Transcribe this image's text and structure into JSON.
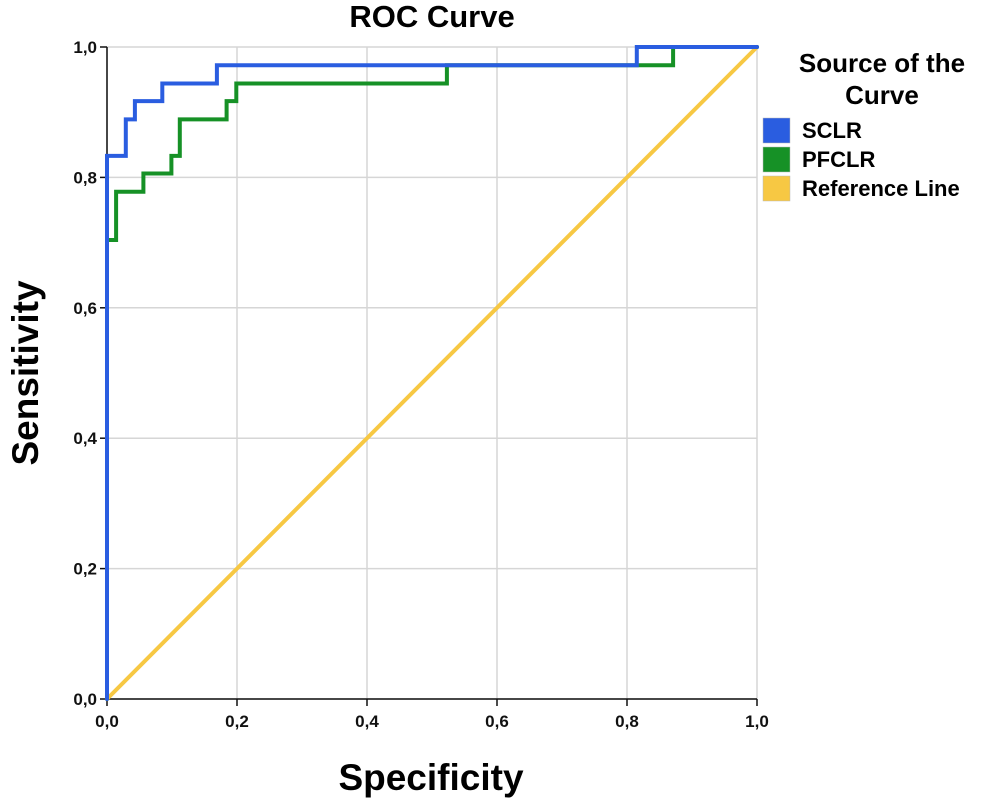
{
  "chart_data": {
    "type": "line",
    "title": "ROC Curve",
    "xlabel": "Specificity",
    "ylabel": "Sensitivity",
    "xlim": [
      0,
      1
    ],
    "ylim": [
      0,
      1
    ],
    "grid": true,
    "xticks": [
      "0,0",
      "0,2",
      "0,4",
      "0,6",
      "0,8",
      "1,0"
    ],
    "yticks": [
      "0,0",
      "0,2",
      "0,4",
      "0,6",
      "0,8",
      "1,0"
    ],
    "legend": {
      "title": "Source of the Curve",
      "placement": "right"
    },
    "series": [
      {
        "name": "SCLR",
        "color": "#2a5de0",
        "step": true,
        "x": [
          0,
          0,
          0.029,
          0.029,
          0.043,
          0.043,
          0.085,
          0.085,
          0.169,
          0.169,
          0.815,
          0.815,
          1.0
        ],
        "y": [
          0,
          0.833,
          0.833,
          0.889,
          0.889,
          0.917,
          0.917,
          0.944,
          0.944,
          0.972,
          0.972,
          1.0,
          1.0
        ]
      },
      {
        "name": "PFCLR",
        "color": "#169126",
        "step": true,
        "x": [
          0,
          0,
          0.014,
          0.014,
          0.056,
          0.056,
          0.099,
          0.099,
          0.112,
          0.112,
          0.184,
          0.184,
          0.199,
          0.199,
          0.523,
          0.523,
          0.871,
          0.871,
          1.0
        ],
        "y": [
          0,
          0.704,
          0.704,
          0.778,
          0.778,
          0.806,
          0.806,
          0.833,
          0.833,
          0.889,
          0.889,
          0.917,
          0.917,
          0.944,
          0.944,
          0.972,
          0.972,
          1.0,
          1.0
        ]
      },
      {
        "name": "Reference Line",
        "color": "#f7c843",
        "step": false,
        "x": [
          0,
          1
        ],
        "y": [
          0,
          1
        ]
      }
    ]
  }
}
